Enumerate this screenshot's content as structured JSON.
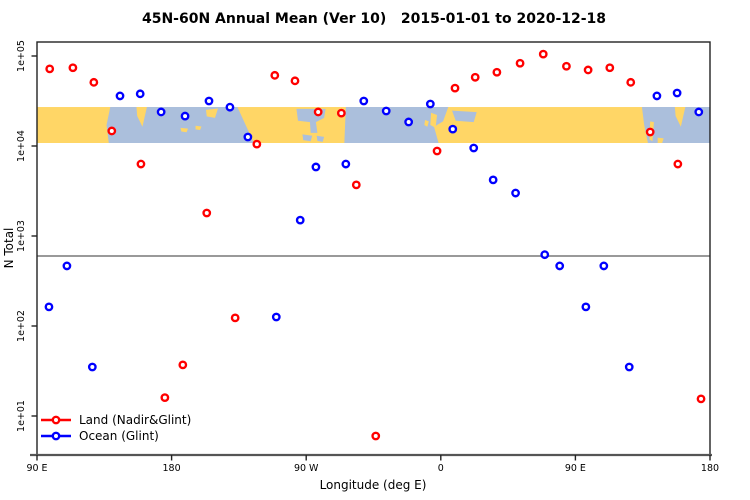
{
  "title": "45N-60N Annual Mean (Ver 10)   2015-01-01 to 2020-12-18",
  "chart_data": {
    "type": "scatter",
    "title": "45N-60N Annual Mean (Ver 10)   2015-01-01 to 2020-12-18",
    "xlabel": "Longitude (deg E)",
    "ylabel": "N Total",
    "x_axis": {
      "range": [
        90,
        540
      ],
      "ticks": [
        {
          "value": 90,
          "label": "90 E"
        },
        {
          "value": 180,
          "label": "180"
        },
        {
          "value": 270,
          "label": "90 W"
        },
        {
          "value": 360,
          "label": "0"
        },
        {
          "value": 450,
          "label": "90 E"
        },
        {
          "value": 540,
          "label": "180"
        }
      ]
    },
    "y_axis": {
      "scale": "log",
      "range": [
        3.7,
        150000
      ],
      "ticks": [
        {
          "value": 10,
          "label": "1e+01"
        },
        {
          "value": 100,
          "label": "1e+02"
        },
        {
          "value": 1000,
          "label": "1e+03"
        },
        {
          "value": 10000,
          "label": "1e+04"
        },
        {
          "value": 100000,
          "label": "1e+05"
        }
      ]
    },
    "reference_line": {
      "value": 600,
      "color": "#999999"
    },
    "map_band": {
      "value_range": [
        10800,
        27100
      ],
      "land_color": "#FFD666",
      "ocean_color": "#ABBFDC",
      "ocean_shapes": [
        {
          "name": "pacific",
          "points": [
            [
              139,
              0
            ],
            [
              224,
              0
            ],
            [
              229,
              0.45
            ],
            [
              235,
              1
            ],
            [
              138,
              1
            ],
            [
              136.5,
              0.5
            ]
          ]
        },
        {
          "name": "hudson-bay",
          "points": [
            [
              263.5,
              0.05
            ],
            [
              283,
              0.05
            ],
            [
              282,
              0.3
            ],
            [
              276.5,
              0.42
            ],
            [
              277.5,
              0.72
            ],
            [
              273,
              0.72
            ],
            [
              272.5,
              0.42
            ],
            [
              264.5,
              0.38
            ]
          ]
        },
        {
          "name": "great-lake-west",
          "points": [
            [
              267.5,
              0.76
            ],
            [
              274,
              0.8
            ],
            [
              273,
              0.95
            ],
            [
              268,
              0.92
            ]
          ]
        },
        {
          "name": "great-lake-east",
          "points": [
            [
              277,
              0.8
            ],
            [
              282,
              0.83
            ],
            [
              281,
              0.97
            ],
            [
              277.5,
              0.94
            ]
          ]
        },
        {
          "name": "atlantic",
          "points": [
            [
              296.5,
              0
            ],
            [
              365,
              0
            ],
            [
              361.5,
              0.4
            ],
            [
              355.5,
              0.55
            ],
            [
              358.5,
              1
            ],
            [
              295.5,
              1
            ]
          ]
        },
        {
          "name": "baltic-sea",
          "points": [
            [
              367.5,
              0.1
            ],
            [
              384,
              0.14
            ],
            [
              382,
              0.42
            ],
            [
              370,
              0.38
            ]
          ]
        },
        {
          "name": "okhotsk-pacific",
          "points": [
            [
              494.5,
              0
            ],
            [
              540,
              0
            ],
            [
              540,
              1
            ],
            [
              498.5,
              1
            ],
            [
              496,
              0.5
            ]
          ]
        }
      ],
      "land_islands": [
        {
          "name": "kamchatka",
          "points": [
            [
              156.5,
              0
            ],
            [
              163.5,
              0
            ],
            [
              160.5,
              0.55
            ],
            [
              157,
              0.25
            ]
          ]
        },
        {
          "name": "alaska-peninsula",
          "points": [
            [
              203,
              0.08
            ],
            [
              211,
              0.04
            ],
            [
              209,
              0.3
            ],
            [
              203.5,
              0.26
            ]
          ]
        },
        {
          "name": "aleutian-west",
          "points": [
            [
              186,
              0.58
            ],
            [
              191,
              0.6
            ],
            [
              190,
              0.7
            ],
            [
              186.5,
              0.68
            ]
          ]
        },
        {
          "name": "aleutian-east",
          "points": [
            [
              196,
              0.52
            ],
            [
              200,
              0.54
            ],
            [
              199,
              0.64
            ],
            [
              196,
              0.62
            ]
          ]
        },
        {
          "name": "britain",
          "points": [
            [
              353.5,
              0.16
            ],
            [
              357.5,
              0.22
            ],
            [
              356.5,
              0.58
            ],
            [
              353,
              0.5
            ]
          ]
        },
        {
          "name": "ireland",
          "points": [
            [
              349.5,
              0.36
            ],
            [
              352,
              0.4
            ],
            [
              351,
              0.55
            ],
            [
              349,
              0.5
            ]
          ]
        },
        {
          "name": "kamchatka-east",
          "points": [
            [
              516.5,
              0
            ],
            [
              523.5,
              0
            ],
            [
              520.5,
              0.55
            ],
            [
              517,
              0.25
            ]
          ]
        },
        {
          "name": "sakhalin",
          "points": [
            [
              500,
              0.4
            ],
            [
              502.5,
              0.42
            ],
            [
              501.5,
              0.95
            ],
            [
              499.5,
              0.9
            ]
          ]
        },
        {
          "name": "hokkaido",
          "points": [
            [
              505,
              0.85
            ],
            [
              509,
              0.87
            ],
            [
              508,
              1
            ],
            [
              505,
              1
            ]
          ]
        }
      ]
    },
    "series": [
      {
        "name": "Land (Nadir&Glint)",
        "color": "#FF0000",
        "points": [
          [
            98.5,
            72000
          ],
          [
            114,
            74000
          ],
          [
            128,
            51000
          ],
          [
            140,
            14700
          ],
          [
            159.5,
            6300
          ],
          [
            175.5,
            16
          ],
          [
            187.5,
            37
          ],
          [
            203.5,
            1800
          ],
          [
            222.5,
            123
          ],
          [
            237,
            10500
          ],
          [
            249,
            61000
          ],
          [
            262.5,
            53000
          ],
          [
            278,
            23900
          ],
          [
            293.5,
            23200
          ],
          [
            303.5,
            3700
          ],
          [
            316.5,
            6
          ],
          [
            357.5,
            8800
          ],
          [
            369.5,
            44000
          ],
          [
            383,
            58000
          ],
          [
            397.5,
            66000
          ],
          [
            413,
            83000
          ],
          [
            428.5,
            105000
          ],
          [
            444,
            77000
          ],
          [
            458.5,
            70000
          ],
          [
            473,
            74000
          ],
          [
            487,
            51000
          ],
          [
            500,
            14300
          ],
          [
            518.5,
            6300
          ],
          [
            534,
            15.5
          ]
        ]
      },
      {
        "name": "Ocean (Glint)",
        "color": "#0000FF",
        "points": [
          [
            98,
            163
          ],
          [
            110,
            465
          ],
          [
            127,
            35
          ],
          [
            145.5,
            36000
          ],
          [
            159,
            38000
          ],
          [
            173,
            23900
          ],
          [
            189,
            21500
          ],
          [
            205,
            31600
          ],
          [
            219,
            27000
          ],
          [
            231,
            12600
          ],
          [
            250,
            126
          ],
          [
            266,
            1500
          ],
          [
            276.5,
            5850
          ],
          [
            296.5,
            6300
          ],
          [
            308.5,
            31600
          ],
          [
            323.5,
            24500
          ],
          [
            338.5,
            18500
          ],
          [
            353,
            29300
          ],
          [
            368,
            15400
          ],
          [
            382,
            9500
          ],
          [
            395,
            4200
          ],
          [
            410,
            3000
          ],
          [
            429.5,
            620
          ],
          [
            439.5,
            465
          ],
          [
            457,
            163
          ],
          [
            469,
            465
          ],
          [
            486,
            35
          ],
          [
            504.5,
            36000
          ],
          [
            518,
            38800
          ],
          [
            532.5,
            23900
          ]
        ]
      }
    ],
    "legend_position": "bottom-left",
    "grid": false
  },
  "legend": {
    "items": [
      {
        "label": "Land (Nadir&Glint)",
        "color": "#FF0000"
      },
      {
        "label": "Ocean (Glint)",
        "color": "#0000FF"
      }
    ]
  },
  "axis_colors": {
    "box": "#222222",
    "bottom_axis": "#555555",
    "text": "#000000"
  }
}
